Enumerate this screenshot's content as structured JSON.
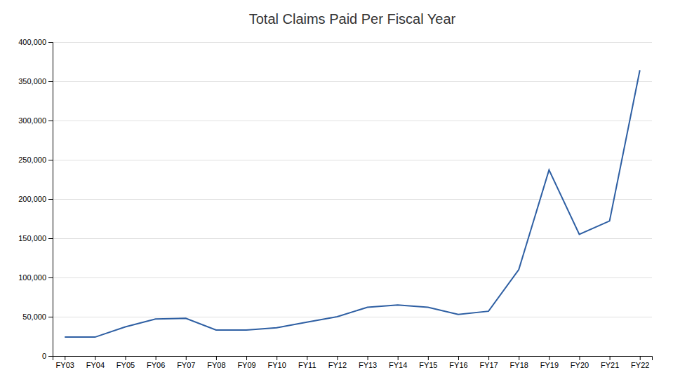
{
  "chart_data": {
    "type": "line",
    "title": "Total Claims Paid Per Fiscal Year",
    "categories": [
      "FY03",
      "FY04",
      "FY05",
      "FY06",
      "FY07",
      "FY08",
      "FY09",
      "FY10",
      "FY11",
      "FY12",
      "FY13",
      "FY14",
      "FY15",
      "FY16",
      "FY17",
      "FY18",
      "FY19",
      "FY20",
      "FY21",
      "FY22"
    ],
    "values": [
      24000,
      24000,
      37000,
      47000,
      48000,
      33000,
      33000,
      36000,
      43000,
      50000,
      62000,
      65000,
      62000,
      53000,
      57000,
      110000,
      237000,
      155000,
      172000,
      364000
    ],
    "color": "#2E5FA3",
    "ylim": [
      0,
      400000
    ],
    "yticks": [
      0,
      {
        "value": 50000,
        "label": "50,000"
      },
      {
        "value": 100000,
        "label": "100,000"
      },
      {
        "value": 150000,
        "label": "150,000"
      },
      {
        "value": 200000,
        "label": "200,000"
      },
      {
        "value": 250000,
        "label": "250,000"
      },
      {
        "value": 300000,
        "label": "300,000"
      },
      {
        "value": 350000,
        "label": "350,000"
      },
      {
        "value": 400000,
        "label": "400,000"
      }
    ],
    "grid": true
  }
}
